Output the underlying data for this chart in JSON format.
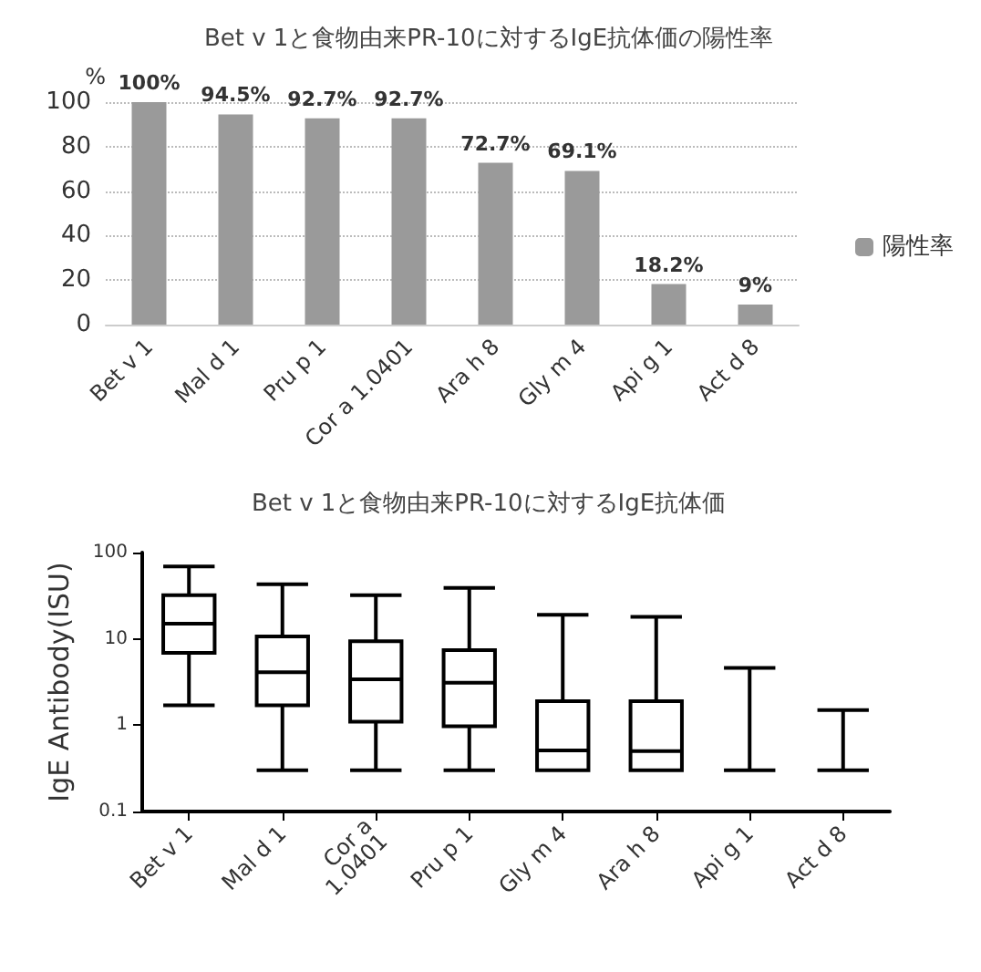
{
  "chart_data": [
    {
      "type": "bar",
      "title": "Bet v 1と食物由来PR-10に対するIgE抗体価の陽性率",
      "ylabel": "%",
      "categories": [
        "Bet v 1",
        "Mal d 1",
        "Pru p 1",
        "Cor a 1.0401",
        "Ara h 8",
        "Gly m 4",
        "Api g 1",
        "Act d 8"
      ],
      "series": [
        {
          "name": "陽性率",
          "color": "#9a9a9a",
          "values": [
            100,
            94.5,
            92.7,
            92.7,
            72.7,
            69.1,
            18.2,
            9
          ],
          "value_labels": [
            "100%",
            "94.5%",
            "92.7%",
            "92.7%",
            "72.7%",
            "69.1%",
            "18.2%",
            "9%"
          ]
        }
      ],
      "ylim": [
        0,
        100
      ],
      "yticks": [
        0,
        20,
        40,
        60,
        80,
        100
      ],
      "grid": "y",
      "legend": "right"
    },
    {
      "type": "box",
      "title": "Bet v 1と食物由来PR-10に対するIgE抗体価",
      "ylabel": "IgE Antibody(ISU)",
      "categories": [
        "Bet v 1",
        "Mal d 1",
        "Cor a\n1.0401",
        "Pru p 1",
        "Gly m 4",
        "Ara h 8",
        "Api g 1",
        "Act d 8"
      ],
      "boxes": [
        {
          "low": 1.7,
          "q1": 6.9,
          "median": 15,
          "q3": 32,
          "high": 69
        },
        {
          "low": 0.3,
          "q1": 1.7,
          "median": 4.1,
          "q3": 10.7,
          "high": 43
        },
        {
          "low": 0.3,
          "q1": 1.1,
          "median": 3.4,
          "q3": 9.4,
          "high": 32
        },
        {
          "low": 0.3,
          "q1": 0.97,
          "median": 3.1,
          "q3": 7.4,
          "high": 39
        },
        {
          "low": 0.3,
          "q1": 0.3,
          "median": 0.51,
          "q3": 1.9,
          "high": 19
        },
        {
          "low": 0.3,
          "q1": 0.3,
          "median": 0.5,
          "q3": 1.9,
          "high": 18
        },
        {
          "low": 0.3,
          "q1": 0.3,
          "median": 0.3,
          "q3": 0.3,
          "high": 4.6
        },
        {
          "low": 0.3,
          "q1": 0.3,
          "median": 0.3,
          "q3": 0.3,
          "high": 1.5
        }
      ],
      "color": "#000000",
      "log": "y",
      "ylim": [
        0.1,
        100
      ],
      "yticks": [
        0.1,
        1,
        10,
        100
      ],
      "grid": false
    }
  ]
}
